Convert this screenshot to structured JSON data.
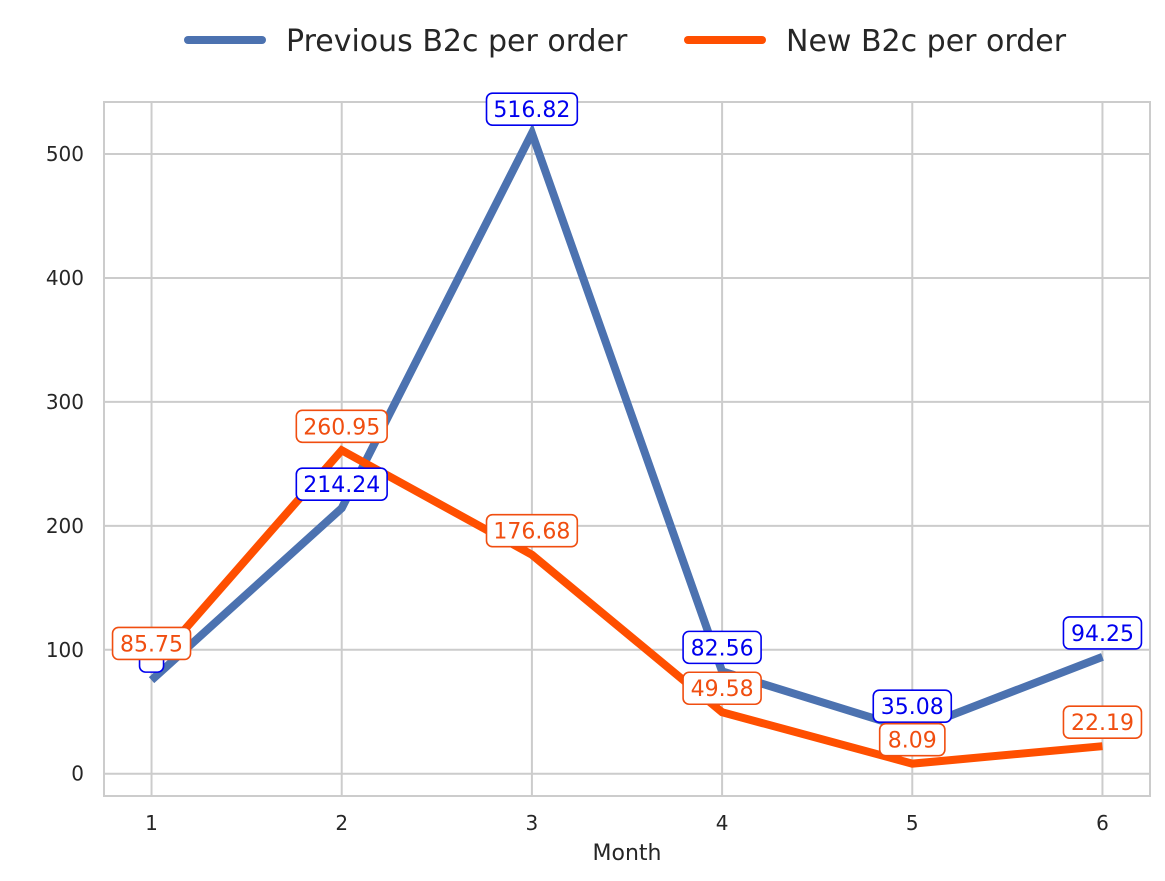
{
  "chart_data": {
    "type": "line",
    "title": "",
    "xlabel": "Month",
    "ylabel": "",
    "x": [
      1,
      2,
      3,
      4,
      5,
      6
    ],
    "x_tick_labels": [
      "1",
      "2",
      "3",
      "4",
      "5",
      "6"
    ],
    "y_ticks": [
      0,
      100,
      200,
      300,
      400,
      500
    ],
    "y_tick_labels": [
      "0",
      "100",
      "200",
      "300",
      "400",
      "500"
    ],
    "xlim": [
      0.75,
      6.25
    ],
    "ylim": [
      -18,
      542
    ],
    "grid": true,
    "legend_position": "top-center",
    "series": [
      {
        "name": "Previous B2c per order",
        "color": "#4c72b0",
        "label_color": "#0000ee",
        "values": [
          75.5,
          214.24,
          516.82,
          82.56,
          35.08,
          94.25
        ],
        "labels": [
          "",
          "214.24",
          "516.82",
          "82.56",
          "35.08",
          "94.25"
        ]
      },
      {
        "name": "New B2c per order",
        "color": "#ff4f00",
        "label_color": "#f04e10",
        "values": [
          85.75,
          260.95,
          176.68,
          49.58,
          8.09,
          22.19
        ],
        "labels": [
          "85.75",
          "260.95",
          "176.68",
          "49.58",
          "8.09",
          "22.19"
        ]
      }
    ]
  }
}
